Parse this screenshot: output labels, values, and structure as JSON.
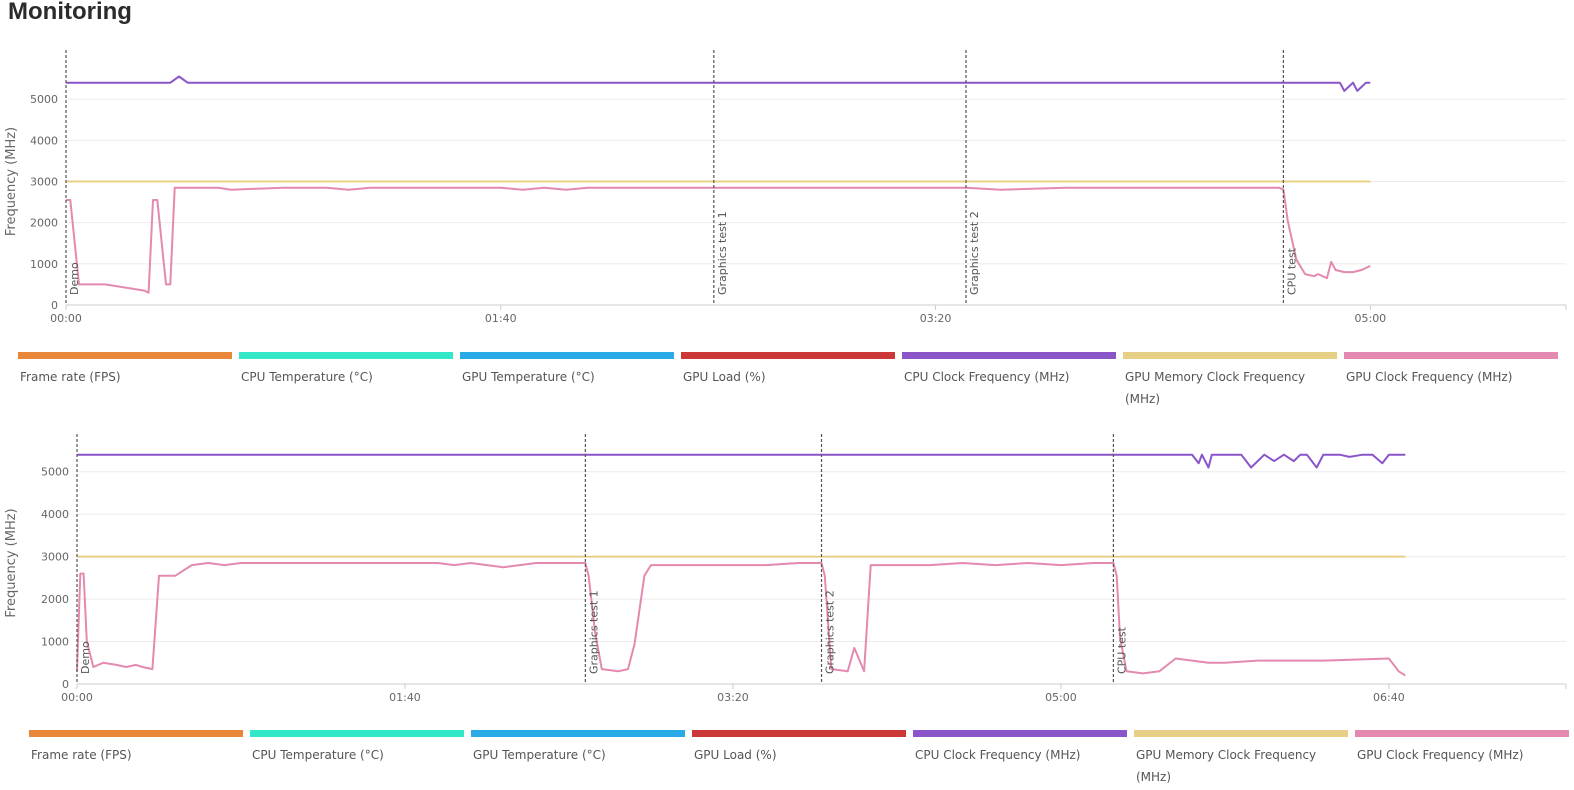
{
  "page_title": "Monitoring",
  "chart_data": [
    {
      "type": "line",
      "ylabel": "Frequency (MHz)",
      "ylim": [
        0,
        6000
      ],
      "yticks": [
        0,
        1000,
        2000,
        3000,
        4000,
        5000
      ],
      "ytick_labels": [
        "0",
        "1000",
        "2000",
        "3000",
        "4000",
        "5000"
      ],
      "xlim": [
        0,
        345
      ],
      "xticks": [
        0,
        100,
        200,
        300
      ],
      "xtick_labels": [
        "00:00",
        "01:40",
        "03:20",
        "05:00"
      ],
      "grid": true,
      "legend_position": "bottom",
      "markers": [
        {
          "x": 0,
          "label": "Demo"
        },
        {
          "x": 149,
          "label": "Graphics test 1"
        },
        {
          "x": 207,
          "label": "Graphics test 2"
        },
        {
          "x": 280,
          "label": "CPU test"
        }
      ],
      "legend": [
        {
          "label": "Frame rate (FPS)",
          "color": "#e8873a"
        },
        {
          "label": "CPU Temperature (°C)",
          "color": "#33e8c7"
        },
        {
          "label": "GPU Temperature (°C)",
          "color": "#2aaae6"
        },
        {
          "label": "GPU Load (%)",
          "color": "#cc3838"
        },
        {
          "label": "CPU Clock Frequency (MHz)",
          "color": "#8a55c9"
        },
        {
          "label": "GPU Memory Clock Frequency (MHz)",
          "color": "#e8cf86"
        },
        {
          "label": "GPU Clock Frequency (MHz)",
          "color": "#e48ab0"
        }
      ],
      "series": [
        {
          "name": "CPU Clock Frequency (MHz)",
          "color": "#8a55c9",
          "x": [
            0,
            24,
            26,
            28,
            100,
            200,
            280,
            293,
            294,
            296,
            297,
            299,
            300
          ],
          "y": [
            5400,
            5400,
            5550,
            5400,
            5400,
            5400,
            5400,
            5400,
            5200,
            5400,
            5200,
            5400,
            5400
          ]
        },
        {
          "name": "GPU Memory Clock Frequency (MHz)",
          "color": "#e8cf86",
          "x": [
            0,
            300
          ],
          "y": [
            3000,
            3000
          ]
        },
        {
          "name": "GPU Clock Frequency (MHz)",
          "color": "#e48ab0",
          "x": [
            0,
            1,
            3,
            9,
            15,
            18,
            19,
            20,
            21,
            23,
            24,
            25,
            35,
            38,
            50,
            60,
            65,
            70,
            75,
            80,
            100,
            105,
            110,
            115,
            120,
            130,
            140,
            149,
            170,
            190,
            200,
            207,
            215,
            230,
            250,
            270,
            279,
            280,
            281,
            283,
            285,
            287,
            288,
            290,
            291,
            292,
            294,
            296,
            298,
            300
          ],
          "y": [
            2550,
            2550,
            500,
            500,
            400,
            350,
            300,
            2550,
            2550,
            500,
            500,
            2850,
            2850,
            2800,
            2850,
            2850,
            2800,
            2850,
            2850,
            2850,
            2850,
            2800,
            2850,
            2800,
            2850,
            2850,
            2850,
            2850,
            2850,
            2850,
            2850,
            2850,
            2800,
            2850,
            2850,
            2850,
            2850,
            2800,
            2050,
            1100,
            750,
            700,
            750,
            650,
            1050,
            850,
            800,
            800,
            850,
            950
          ]
        }
      ]
    },
    {
      "type": "line",
      "ylabel": "Frequency (MHz)",
      "ylim": [
        0,
        5700
      ],
      "yticks": [
        0,
        1000,
        2000,
        3000,
        4000,
        5000
      ],
      "ytick_labels": [
        "0",
        "1000",
        "2000",
        "3000",
        "4000",
        "5000"
      ],
      "xlim": [
        0,
        454
      ],
      "xticks": [
        0,
        100,
        200,
        300,
        400
      ],
      "xtick_labels": [
        "00:00",
        "01:40",
        "03:20",
        "05:00",
        "06:40"
      ],
      "grid": true,
      "legend_position": "bottom",
      "markers": [
        {
          "x": 0,
          "label": "Demo"
        },
        {
          "x": 155,
          "label": "Graphics test 1"
        },
        {
          "x": 227,
          "label": "Graphics test 2"
        },
        {
          "x": 316,
          "label": "CPU test"
        }
      ],
      "legend": [
        {
          "label": "Frame rate (FPS)",
          "color": "#e8873a"
        },
        {
          "label": "CPU Temperature (°C)",
          "color": "#33e8c7"
        },
        {
          "label": "GPU Temperature (°C)",
          "color": "#2aaae6"
        },
        {
          "label": "GPU Load (%)",
          "color": "#cc3838"
        },
        {
          "label": "CPU Clock Frequency (MHz)",
          "color": "#8a55c9"
        },
        {
          "label": "GPU Memory Clock Frequency (MHz)",
          "color": "#e8cf86"
        },
        {
          "label": "GPU Clock Frequency (MHz)",
          "color": "#e48ab0"
        }
      ],
      "series": [
        {
          "name": "CPU Clock Frequency (MHz)",
          "color": "#8a55c9",
          "x": [
            0,
            340,
            342,
            343,
            345,
            346,
            348,
            355,
            358,
            362,
            365,
            368,
            371,
            373,
            375,
            378,
            380,
            382,
            385,
            388,
            392,
            395,
            398,
            400,
            402,
            405
          ],
          "y": [
            5400,
            5400,
            5200,
            5400,
            5100,
            5400,
            5400,
            5400,
            5100,
            5400,
            5250,
            5400,
            5250,
            5400,
            5400,
            5100,
            5400,
            5400,
            5400,
            5350,
            5400,
            5400,
            5200,
            5400,
            5400,
            5400
          ]
        },
        {
          "name": "GPU Memory Clock Frequency (MHz)",
          "color": "#e8cf86",
          "x": [
            0,
            405
          ],
          "y": [
            3000,
            3000
          ]
        },
        {
          "name": "GPU Clock Frequency (MHz)",
          "color": "#e48ab0",
          "x": [
            0,
            1,
            2,
            3,
            5,
            8,
            12,
            15,
            18,
            20,
            23,
            25,
            30,
            35,
            40,
            45,
            50,
            60,
            70,
            80,
            90,
            100,
            110,
            115,
            120,
            130,
            140,
            150,
            155,
            156,
            158,
            160,
            165,
            168,
            170,
            173,
            175,
            180,
            190,
            200,
            210,
            220,
            227,
            228,
            230,
            235,
            237,
            240,
            242,
            244,
            250,
            260,
            270,
            280,
            290,
            300,
            310,
            316,
            317,
            318,
            320,
            325,
            330,
            335,
            340,
            345,
            350,
            360,
            380,
            400,
            403,
            405
          ],
          "y": [
            300,
            2600,
            2600,
            1000,
            400,
            500,
            450,
            400,
            450,
            400,
            350,
            2550,
            2550,
            2800,
            2850,
            2800,
            2850,
            2850,
            2850,
            2850,
            2850,
            2850,
            2850,
            2800,
            2850,
            2750,
            2850,
            2850,
            2850,
            2550,
            1200,
            350,
            300,
            350,
            950,
            2550,
            2800,
            2800,
            2800,
            2800,
            2800,
            2850,
            2850,
            2550,
            350,
            300,
            850,
            300,
            2800,
            2800,
            2800,
            2800,
            2850,
            2800,
            2850,
            2800,
            2850,
            2850,
            2550,
            1100,
            300,
            250,
            300,
            600,
            550,
            500,
            500,
            550,
            550,
            600,
            300,
            200
          ]
        }
      ]
    }
  ]
}
